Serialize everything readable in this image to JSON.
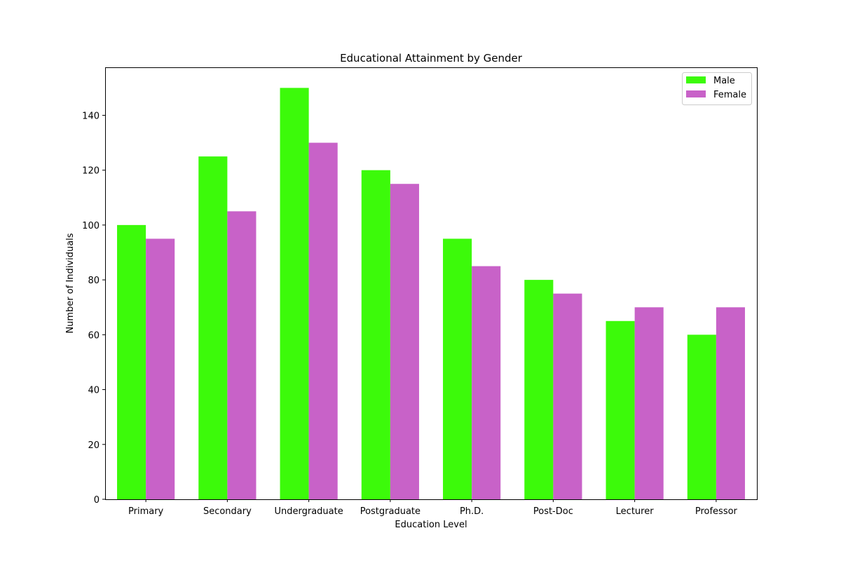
{
  "chart_data": {
    "type": "bar",
    "title": "Educational Attainment by Gender",
    "xlabel": "Education Level",
    "ylabel": "Number of Individuals",
    "categories": [
      "Primary",
      "Secondary",
      "Undergraduate",
      "Postgraduate",
      "Ph.D.",
      "Post-Doc",
      "Lecturer",
      "Professor"
    ],
    "series": [
      {
        "name": "Male",
        "color": "#3cfa0a",
        "values": [
          100,
          125,
          150,
          120,
          95,
          80,
          65,
          60
        ]
      },
      {
        "name": "Female",
        "color": "#c862c8",
        "values": [
          95,
          105,
          130,
          115,
          85,
          75,
          70,
          70
        ]
      }
    ],
    "ylim": [
      0,
      157.5
    ],
    "yticks": [
      0,
      20,
      40,
      60,
      80,
      100,
      120,
      140
    ],
    "grid": false,
    "legend_position": "top-right"
  }
}
